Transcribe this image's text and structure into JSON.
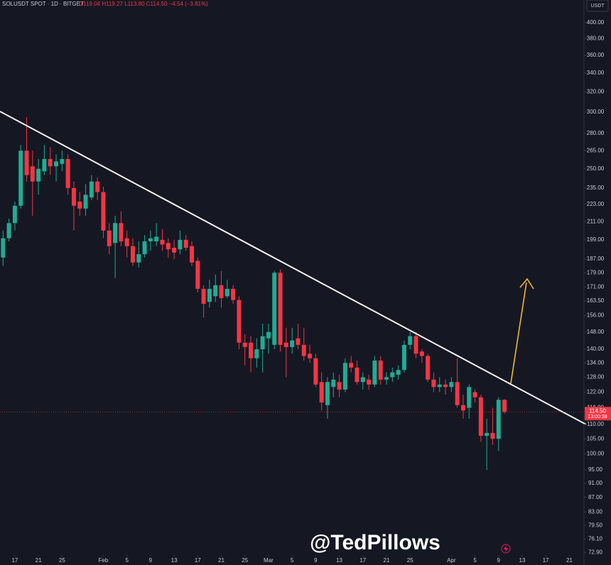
{
  "chart_data": {
    "type": "candlestick",
    "header": "SOLUSDT SPOT · 1D · BITGET",
    "header_values": "O119.04 H119.27 L113.80 C114.50 −4.54 (−3.81%)",
    "currency": "USDT",
    "watermark": "@TedPillows",
    "log_scale": true,
    "up_color": "#22ab94",
    "down_color": "#f23645",
    "x": [
      "Jan 15",
      "Jan 16",
      "Jan 17",
      "Jan 18",
      "Jan 19",
      "Jan 20",
      "Jan 21",
      "Jan 22",
      "Jan 23",
      "Jan 24",
      "Jan 25",
      "Jan 26",
      "Jan 27",
      "Jan 28",
      "Jan 29",
      "Jan 30",
      "Jan 31",
      "Feb 1",
      "Feb 2",
      "Feb 3",
      "Feb 4",
      "Feb 5",
      "Feb 6",
      "Feb 7",
      "Feb 8",
      "Feb 9",
      "Feb 10",
      "Feb 11",
      "Feb 12",
      "Feb 13",
      "Feb 14",
      "Feb 15",
      "Feb 16",
      "Feb 17",
      "Feb 18",
      "Feb 19",
      "Feb 20",
      "Feb 21",
      "Feb 22",
      "Feb 23",
      "Feb 24",
      "Feb 25",
      "Feb 26",
      "Feb 27",
      "Feb 28",
      "Mar 1",
      "Mar 2",
      "Mar 3",
      "Mar 4",
      "Mar 5",
      "Mar 6",
      "Mar 7",
      "Mar 8",
      "Mar 9",
      "Mar 10",
      "Mar 11",
      "Mar 12",
      "Mar 13",
      "Mar 14",
      "Mar 15",
      "Mar 16",
      "Mar 17",
      "Mar 18",
      "Mar 19",
      "Mar 20",
      "Mar 21",
      "Mar 22",
      "Mar 23",
      "Mar 24",
      "Mar 25",
      "Mar 26",
      "Mar 27",
      "Mar 28",
      "Mar 29",
      "Mar 30",
      "Mar 31",
      "Apr 1",
      "Apr 2",
      "Apr 3",
      "Apr 4",
      "Apr 5",
      "Apr 6",
      "Apr 7",
      "Apr 8",
      "Apr 9",
      "Apr 10"
    ],
    "open": [
      188,
      200,
      210,
      222,
      265,
      252,
      240,
      248,
      258,
      252,
      254,
      258,
      235,
      225,
      220,
      228,
      240,
      232,
      205,
      197,
      210,
      200,
      195,
      185,
      190,
      198,
      198,
      199,
      197,
      194,
      193,
      199,
      195,
      186,
      170,
      163,
      166,
      172,
      166,
      170,
      164,
      143,
      143,
      136,
      140,
      145,
      142,
      179,
      143,
      141,
      145,
      142,
      138,
      136,
      126,
      117,
      124,
      126,
      123,
      134,
      132,
      126,
      127,
      125,
      135,
      127,
      128,
      129,
      131,
      142,
      146,
      139,
      137,
      127,
      124,
      125,
      124,
      126,
      117,
      116,
      122,
      120,
      106,
      107,
      105,
      119.04
    ],
    "high": [
      205,
      213,
      225,
      270,
      295,
      265,
      258,
      270,
      268,
      262,
      265,
      262,
      240,
      232,
      238,
      245,
      243,
      236,
      210,
      215,
      218,
      205,
      200,
      198,
      202,
      205,
      210,
      206,
      200,
      199,
      205,
      202,
      198,
      188,
      172,
      175,
      178,
      180,
      175,
      172,
      166,
      147,
      146,
      145,
      152,
      152,
      180,
      181,
      150,
      150,
      152,
      150,
      142,
      138,
      130,
      128,
      130,
      129,
      136,
      137,
      135,
      130,
      129,
      137,
      137,
      130,
      132,
      133,
      144,
      148,
      148,
      140,
      138,
      130,
      128,
      127,
      128,
      136,
      121,
      125,
      123,
      121,
      112,
      116,
      120,
      119.27
    ],
    "low": [
      183,
      198,
      205,
      220,
      240,
      215,
      230,
      245,
      245,
      240,
      248,
      230,
      205,
      215,
      215,
      226,
      226,
      200,
      190,
      176,
      195,
      188,
      183,
      182,
      188,
      192,
      195,
      192,
      188,
      187,
      190,
      192,
      183,
      168,
      155,
      160,
      163,
      160,
      165,
      162,
      140,
      133,
      130,
      132,
      130,
      138,
      140,
      139,
      128,
      138,
      140,
      135,
      134,
      124,
      115,
      112,
      120,
      120,
      122,
      130,
      125,
      123,
      123,
      124,
      125,
      125,
      126,
      127,
      130,
      140,
      136,
      134,
      126,
      122,
      122,
      121,
      122,
      116,
      112,
      112,
      118,
      104,
      95,
      103,
      101,
      113.8
    ],
    "close": [
      200,
      210,
      222,
      265,
      245,
      240,
      250,
      258,
      252,
      256,
      258,
      235,
      222,
      220,
      230,
      240,
      232,
      205,
      195,
      210,
      198,
      195,
      185,
      190,
      198,
      200,
      201,
      196,
      193,
      191,
      199,
      194,
      185,
      170,
      162,
      170,
      172,
      165,
      170,
      164,
      143,
      141,
      136,
      140,
      146,
      148,
      179,
      142,
      141,
      144,
      142,
      137,
      136,
      125,
      118,
      126,
      127,
      123,
      134,
      132,
      126,
      128,
      125,
      135,
      127,
      128,
      130,
      131,
      142,
      146,
      138,
      137,
      127,
      124,
      125,
      124,
      126,
      117,
      115,
      124,
      120,
      106,
      107,
      105,
      119,
      114.5
    ],
    "last_price": {
      "value": 114.5,
      "label": "114.50",
      "countdown": "13:00:38"
    },
    "xlim": [
      "Jan 14",
      "Apr 23"
    ],
    "xticks": [
      {
        "value": "Jan 17",
        "label": "17"
      },
      {
        "value": "Jan 21",
        "label": "21"
      },
      {
        "value": "Jan 25",
        "label": "25"
      },
      {
        "value": "Feb 1",
        "label": "Feb"
      },
      {
        "value": "Feb 5",
        "label": "5"
      },
      {
        "value": "Feb 9",
        "label": "9"
      },
      {
        "value": "Feb 13",
        "label": "13"
      },
      {
        "value": "Feb 17",
        "label": "17"
      },
      {
        "value": "Feb 21",
        "label": "21"
      },
      {
        "value": "Feb 25",
        "label": "25"
      },
      {
        "value": "Mar 1",
        "label": "Mar"
      },
      {
        "value": "Mar 5",
        "label": "5"
      },
      {
        "value": "Mar 9",
        "label": "9"
      },
      {
        "value": "Mar 13",
        "label": "13"
      },
      {
        "value": "Mar 17",
        "label": "17"
      },
      {
        "value": "Mar 21",
        "label": "21"
      },
      {
        "value": "Mar 25",
        "label": "25"
      },
      {
        "value": "Apr 1",
        "label": "Apr"
      },
      {
        "value": "Apr 5",
        "label": "5"
      },
      {
        "value": "Apr 9",
        "label": "9"
      },
      {
        "value": "Apr 13",
        "label": "13"
      },
      {
        "value": "Apr 17",
        "label": "17"
      },
      {
        "value": "Apr 21",
        "label": "21"
      }
    ],
    "ylim": [
      70,
      430
    ],
    "yticks": [
      {
        "value": 400,
        "label": "400.00"
      },
      {
        "value": 380,
        "label": "380.00"
      },
      {
        "value": 360,
        "label": "360.00"
      },
      {
        "value": 340,
        "label": "340.00"
      },
      {
        "value": 320,
        "label": "320.00"
      },
      {
        "value": 300,
        "label": "300.00"
      },
      {
        "value": 280,
        "label": "280.00"
      },
      {
        "value": 265,
        "label": "265.00"
      },
      {
        "value": 250,
        "label": "250.00"
      },
      {
        "value": 235,
        "label": "235.00"
      },
      {
        "value": 223,
        "label": "223.00"
      },
      {
        "value": 211,
        "label": "211.00"
      },
      {
        "value": 199,
        "label": "199.00"
      },
      {
        "value": 187,
        "label": "187.00"
      },
      {
        "value": 179,
        "label": "179.00"
      },
      {
        "value": 171,
        "label": "171.00"
      },
      {
        "value": 163.5,
        "label": "163.50"
      },
      {
        "value": 156,
        "label": "156.00"
      },
      {
        "value": 148,
        "label": "148.00"
      },
      {
        "value": 140,
        "label": "140.00"
      },
      {
        "value": 134,
        "label": "134.00"
      },
      {
        "value": 128,
        "label": "128.00"
      },
      {
        "value": 122,
        "label": "122.00"
      },
      {
        "value": 116,
        "label": "116.00"
      },
      {
        "value": 110,
        "label": "110.00"
      },
      {
        "value": 105,
        "label": "105.00"
      },
      {
        "value": 100,
        "label": "100.00"
      },
      {
        "value": 95,
        "label": "95.00"
      },
      {
        "value": 91,
        "label": "91.00"
      },
      {
        "value": 87,
        "label": "87.00"
      },
      {
        "value": 83,
        "label": "83.00"
      },
      {
        "value": 79.5,
        "label": "79.50"
      },
      {
        "value": 76.1,
        "label": "76.10"
      },
      {
        "value": 72.9,
        "label": "72.90"
      }
    ]
  }
}
